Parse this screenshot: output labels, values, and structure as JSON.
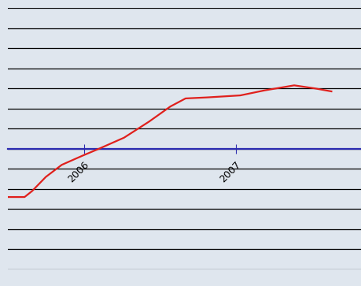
{
  "chart_data": {
    "type": "line",
    "x": [
      2005.5,
      2005.61,
      2005.66,
      2005.75,
      2005.855,
      2005.99,
      2006.1,
      2006.265,
      2006.43,
      2006.57,
      2006.67,
      2006.81,
      2007.03,
      2007.19,
      2007.385,
      2007.52,
      2007.63
    ],
    "values": [
      -2.4,
      -2.4,
      -2.1,
      -1.4,
      -0.8,
      -0.35,
      0.0,
      0.55,
      1.35,
      2.1,
      2.5,
      2.55,
      2.65,
      2.9,
      3.15,
      3.0,
      2.85
    ],
    "color": "#e0201c",
    "xlim": [
      2005.5,
      2007.83
    ],
    "xticks": [
      2006,
      2007
    ],
    "ylim": [
      -6,
      7
    ],
    "yticks": [
      -6,
      -5,
      -4,
      -3,
      -2,
      -1,
      0,
      1,
      2,
      3,
      4,
      5,
      6,
      7
    ],
    "grid": true,
    "tick_labels": "x"
  }
}
